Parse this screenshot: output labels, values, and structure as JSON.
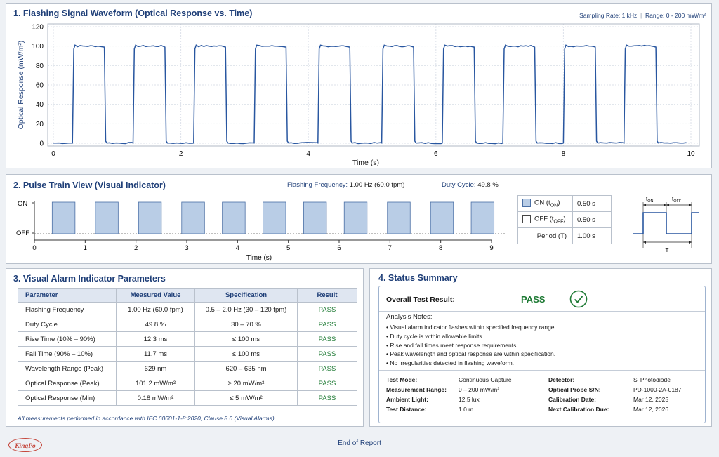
{
  "waveform": {
    "title": "1. Flashing Signal Waveform (Optical Response vs. Time)",
    "sampling_label": "Sampling Rate:",
    "sampling_value": "1 kHz",
    "separator": "|",
    "range_label": "Range:",
    "range_value": "0 - 200 mW/m²",
    "ylabel": "Optical Response (mW/m²)",
    "xlabel": "Time (s)",
    "y_ticks": [
      "120",
      "100",
      "80",
      "60",
      "40",
      "20",
      "0"
    ],
    "x_ticks": [
      "0",
      "2",
      "4",
      "6",
      "8",
      "10"
    ]
  },
  "chart_data": [
    {
      "type": "line",
      "xlabel": "Time (s)",
      "ylabel": "Optical Response (mW/m²)",
      "xlim": [
        0,
        10
      ],
      "ylim": [
        0,
        120
      ],
      "grid": true,
      "pulses": [
        {
          "on": 0.3,
          "off": 0.8
        },
        {
          "on": 1.25,
          "off": 1.75
        },
        {
          "on": 2.2,
          "off": 2.7
        },
        {
          "on": 3.15,
          "off": 3.65
        },
        {
          "on": 4.15,
          "off": 4.65
        },
        {
          "on": 5.15,
          "off": 5.65
        },
        {
          "on": 6.1,
          "off": 6.6
        },
        {
          "on": 7.05,
          "off": 7.55
        },
        {
          "on": 8.0,
          "off": 8.5
        },
        {
          "on": 8.95,
          "off": 9.45
        }
      ],
      "on_level": 100,
      "off_level": 0.2,
      "x_end": 9.95
    },
    {
      "type": "bar",
      "title": "2. Pulse Train View (Visual Indicator)",
      "xlabel": "Time (s)",
      "xlim": [
        0,
        9
      ],
      "levels": [
        "ON",
        "OFF"
      ],
      "pulses": [
        {
          "on": 0.35,
          "off": 0.8
        },
        {
          "on": 1.2,
          "off": 1.65
        },
        {
          "on": 2.05,
          "off": 2.5
        },
        {
          "on": 2.9,
          "off": 3.35
        },
        {
          "on": 3.7,
          "off": 4.15
        },
        {
          "on": 4.5,
          "off": 4.95
        },
        {
          "on": 5.3,
          "off": 5.75
        },
        {
          "on": 6.1,
          "off": 6.55
        },
        {
          "on": 6.95,
          "off": 7.4
        },
        {
          "on": 7.8,
          "off": 8.25
        },
        {
          "on": 8.6,
          "off": 9.05
        }
      ]
    }
  ],
  "pulse": {
    "title": "2. Pulse Train View (Visual Indicator)",
    "freq_label": "Flashing Frequency:",
    "freq_value": "1.00 Hz (60.0 fpm)",
    "duty_label": "Duty Cycle:",
    "duty_value": "49.8 %",
    "on_label": "ON",
    "off_label": "OFF",
    "x_ticks": [
      "0",
      "1",
      "2",
      "3",
      "4",
      "5",
      "6",
      "7",
      "8",
      "9"
    ],
    "xlabel": "Time (s)",
    "legend": [
      {
        "label": "ON (t",
        "sub": "ON",
        "tail": ")",
        "value": "0.50 s",
        "swatch": "#b9cde6"
      },
      {
        "label": "OFF (t",
        "sub": "OFF",
        "tail": ")",
        "value": "0.50 s",
        "swatch": "#ffffff"
      },
      {
        "label": "Period (T)",
        "sub": "",
        "tail": "",
        "value": "1.00 s",
        "swatch": ""
      }
    ],
    "diagram": {
      "t_on": "t",
      "t_on_sub": "ON",
      "t_off": "t",
      "t_off_sub": "OFF",
      "period": "T"
    }
  },
  "params": {
    "title": "3. Visual Alarm Indicator Parameters",
    "headers": [
      "Parameter",
      "Measured Value",
      "Specification",
      "Result"
    ],
    "rows": [
      [
        "Flashing Frequency",
        "1.00 Hz (60.0 fpm)",
        "0.5 – 2.0 Hz (30 – 120 fpm)",
        "PASS"
      ],
      [
        "Duty Cycle",
        "49.8 %",
        "30 – 70 %",
        "PASS"
      ],
      [
        "Rise Time (10% – 90%)",
        "12.3 ms",
        "≤ 100 ms",
        "PASS"
      ],
      [
        "Fall Time (90% – 10%)",
        "11.7 ms",
        "≤ 100 ms",
        "PASS"
      ],
      [
        "Wavelength Range (Peak)",
        "629 nm",
        "620 – 635 nm",
        "PASS"
      ],
      [
        "Optical Response (Peak)",
        "101.2 mW/m²",
        "≥ 20 mW/m²",
        "PASS"
      ],
      [
        "Optical Response (Min)",
        "0.18 mW/m²",
        "≤ 5 mW/m²",
        "PASS"
      ]
    ],
    "footnote": "All measurements performed in accordance with IEC 60601-1-8:2020, Clause 8.6 (Visual Alarms)."
  },
  "status": {
    "title": "4. Status Summary",
    "overall_label": "Overall Test Result:",
    "overall_value": "PASS",
    "notes_title": "Analysis Notes:",
    "notes": [
      "• Visual alarm indicator flashes within specified frequency range.",
      "• Duty cycle is within allowable limits.",
      "• Rise and fall times meet response requirements.",
      "• Peak wavelength and optical response are within specification.",
      "• No irregularities detected in flashing waveform."
    ],
    "left_kv": [
      {
        "k": "Test Mode:",
        "v": "Continuous Capture"
      },
      {
        "k": "Measurement Range:",
        "v": "0 – 200 mW/m²"
      },
      {
        "k": "Ambient Light:",
        "v": "12.5 lux"
      },
      {
        "k": "Test Distance:",
        "v": "1.0 m"
      }
    ],
    "right_kv": [
      {
        "k": "Detector:",
        "v": "Si Photodiode"
      },
      {
        "k": "Optical Probe S/N:",
        "v": "PD-1000-2A-0187"
      },
      {
        "k": "Calibration Date:",
        "v": "Mar 12, 2025"
      },
      {
        "k": "Next Calibration Due:",
        "v": "Mar 12, 2026"
      }
    ]
  },
  "footer": {
    "logo": "KingPo",
    "end_text": "End of Report"
  },
  "colors": {
    "accent": "#1f3f78",
    "line": "#2856a0",
    "pulse_fill": "#b9cde6",
    "pass": "#1e7a34"
  }
}
